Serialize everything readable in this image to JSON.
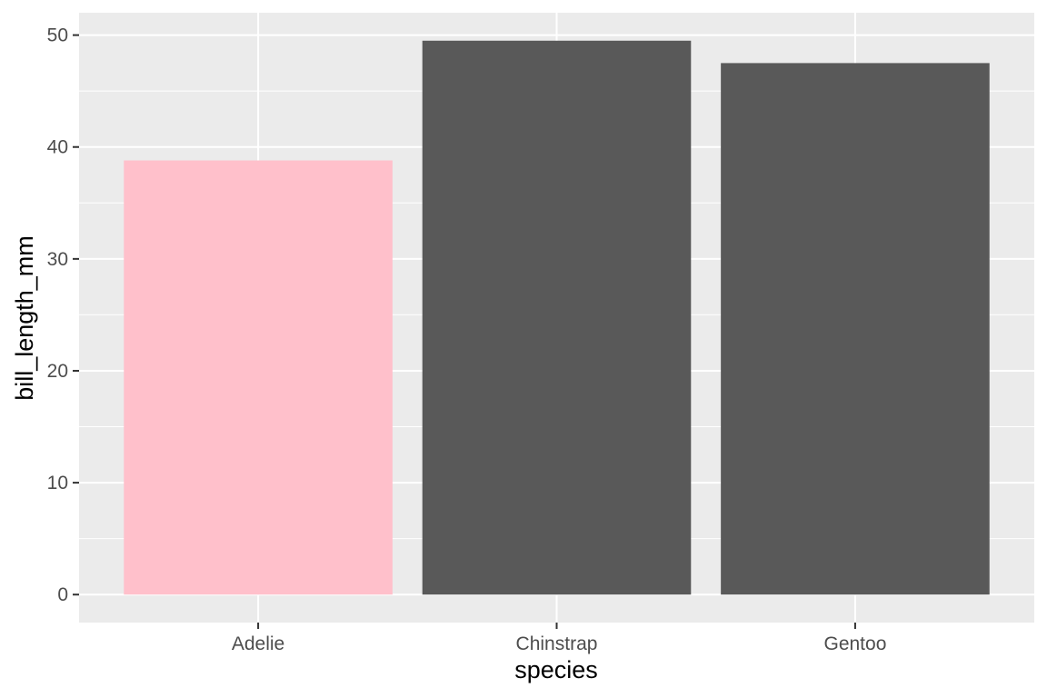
{
  "chart_data": {
    "type": "bar",
    "categories": [
      "Adelie",
      "Chinstrap",
      "Gentoo"
    ],
    "values": [
      38.8,
      49.5,
      47.5
    ],
    "bar_colors": [
      "#FFC0CB",
      "#595959",
      "#595959"
    ],
    "xlabel": "species",
    "ylabel": "bill_length_mm",
    "ylim": [
      -2.5,
      52
    ],
    "yticks": [
      0,
      10,
      20,
      30,
      40,
      50
    ],
    "ytick_labels": [
      "0",
      "10",
      "20",
      "30",
      "40",
      "50"
    ],
    "grid": true,
    "panel_background": "#EBEBEB",
    "grid_color": "#FFFFFF",
    "tick_color": "#333333"
  }
}
